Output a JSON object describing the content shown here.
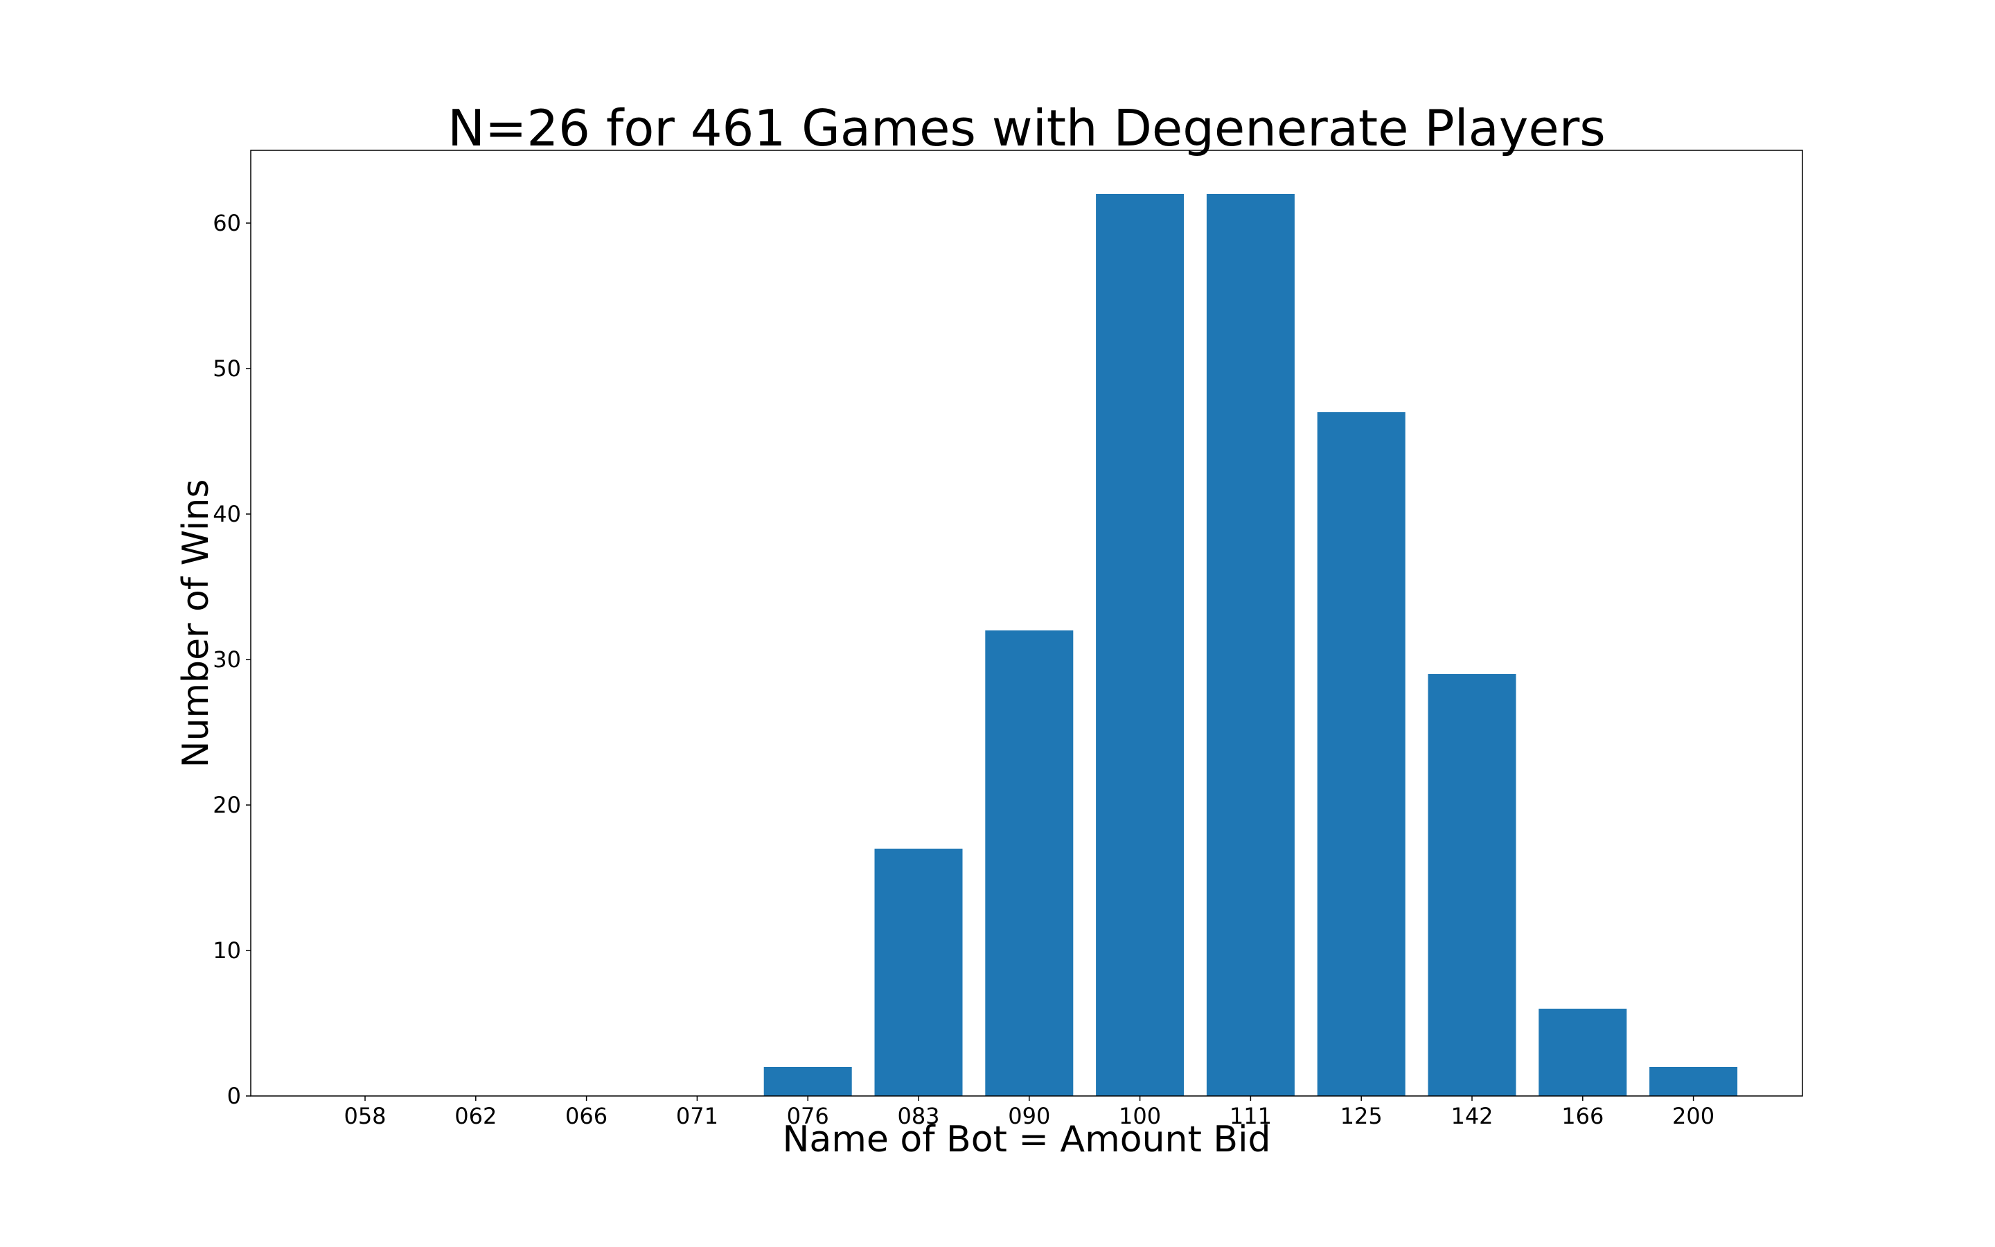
{
  "chart_data": {
    "type": "bar",
    "title": "N=26 for 461 Games with Degenerate Players",
    "xlabel": "Name of Bot = Amount Bid",
    "ylabel": "Number of Wins",
    "categories": [
      "058",
      "062",
      "066",
      "071",
      "076",
      "083",
      "090",
      "100",
      "111",
      "125",
      "142",
      "166",
      "200"
    ],
    "values": [
      0,
      0,
      0,
      0,
      2,
      17,
      32,
      62,
      62,
      47,
      29,
      6,
      2
    ],
    "ylim": [
      0,
      65
    ],
    "yticks": [
      0,
      10,
      20,
      30,
      40,
      50,
      60
    ],
    "grid": false,
    "legend": "none",
    "bar_color": "#1f77b4",
    "axis_color": "#000000"
  }
}
